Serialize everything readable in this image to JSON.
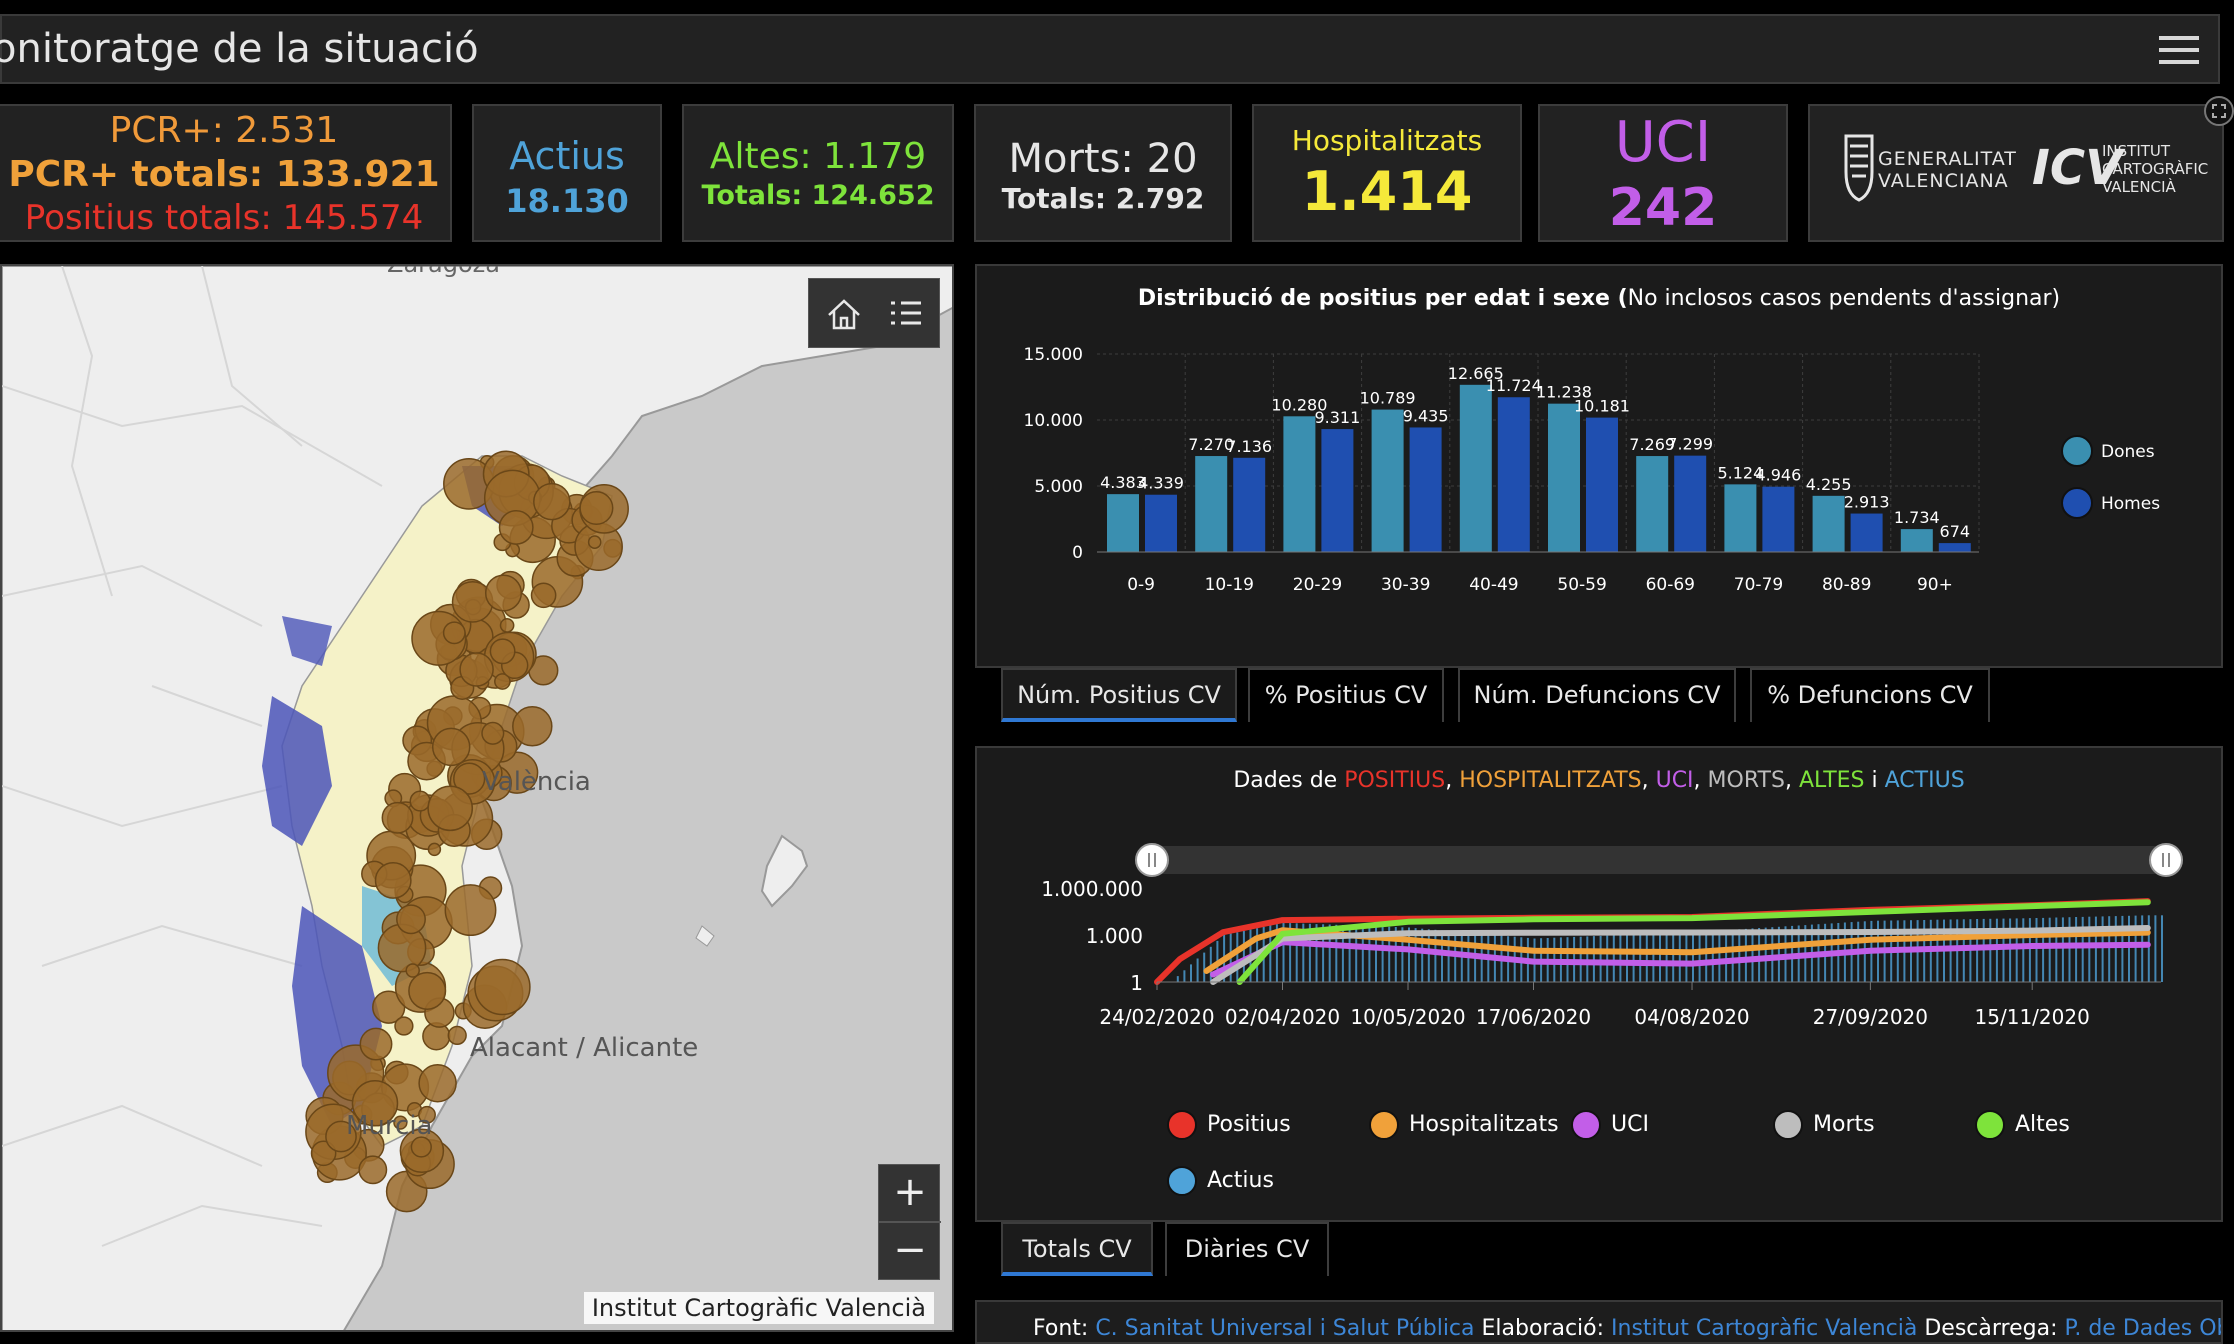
{
  "header": {
    "title": "onitoratge de la situació"
  },
  "cards": {
    "pcr": {
      "pcr_day": "PCR+: 2.531",
      "pcr_total": "PCR+ totals: 133.921",
      "positius_total": "Positius totals: 145.574"
    },
    "actius": {
      "label": "Actius",
      "value": "18.130"
    },
    "altes": {
      "label": "Altes: 1.179",
      "total": "Totals: 124.652"
    },
    "morts": {
      "label": "Morts: 20",
      "total": "Totals: 2.792"
    },
    "hospitalitzats": {
      "label": "Hospitalitzats",
      "value": "1.414"
    },
    "uci": {
      "label": "UCI",
      "value": "242"
    },
    "logos": {
      "gva": [
        "GENERALITAT",
        "VALENCIANA"
      ],
      "icv_mark": "ICV",
      "icv": [
        "INSTITUT",
        "CARTOGRÀFIC",
        "VALENCIÀ"
      ]
    }
  },
  "map": {
    "labels": {
      "zaragoza": "Zaragoza",
      "valencia": "València",
      "alacant": "Alacant / Alicante",
      "murcia": "Murcia"
    },
    "zoom_in": "+",
    "zoom_out": "−",
    "attribution": "Institut Cartogràfic Valencià"
  },
  "chart_age": {
    "title_bold": "Distribució de positius per edat i sexe (",
    "title_rest": "No inclosos casos pendents d'assignar)",
    "tabs": [
      "Núm. Positius CV",
      "% Positius CV",
      "Núm. Defuncions CV",
      "% Defuncions CV"
    ]
  },
  "chart_series": {
    "title_parts": [
      {
        "text": "Dades de ",
        "color": "#ffffff"
      },
      {
        "text": "POSITIUS",
        "color": "#e8332a"
      },
      {
        "text": ", ",
        "color": "#ffffff"
      },
      {
        "text": "HOSPITALITZATS",
        "color": "#f0a13a"
      },
      {
        "text": ", ",
        "color": "#ffffff"
      },
      {
        "text": "UCI",
        "color": "#c25ee8"
      },
      {
        "text": ", ",
        "color": "#ffffff"
      },
      {
        "text": "MORTS",
        "color": "#bdbdbd"
      },
      {
        "text": ", ",
        "color": "#ffffff"
      },
      {
        "text": "ALTES",
        "color": "#7ee33b"
      },
      {
        "text": " i ",
        "color": "#ffffff"
      },
      {
        "text": "ACTIUS",
        "color": "#4fa3d9"
      }
    ],
    "tabs": [
      "Totals CV",
      "Diàries CV"
    ]
  },
  "footer": {
    "font_label": "Font: ",
    "font_link": "C. Sanitat Universal i Salut Pública",
    "elab_label": " Elaboració: ",
    "elab_link": "Institut Cartogràfic Valencià",
    "desc_label": " Descàrrega: ",
    "desc_link": "P. de Dades Obertes"
  },
  "chart_data": [
    {
      "type": "bar",
      "categories": [
        "0-9",
        "10-19",
        "20-29",
        "30-39",
        "40-49",
        "50-59",
        "60-69",
        "70-79",
        "80-89",
        "90+"
      ],
      "series": [
        {
          "name": "Dones",
          "color": "#3a8fb0",
          "values": [
            4383,
            7270,
            10280,
            10789,
            12665,
            11238,
            7269,
            5124,
            4255,
            1734
          ],
          "labels": [
            "4.383",
            "7.270",
            "10.280",
            "10.789",
            "12.665",
            "11.238",
            "7.269",
            "5.124",
            "4.255",
            "1.734"
          ]
        },
        {
          "name": "Homes",
          "color": "#1f4fb0",
          "values": [
            4339,
            7136,
            9311,
            9435,
            11724,
            10181,
            7299,
            4946,
            2913,
            674
          ],
          "labels": [
            "4.339",
            "7.136",
            "9.311",
            "9.435",
            "11.724",
            "10.181",
            "7.299",
            "4.946",
            "2.913",
            "674"
          ]
        }
      ],
      "yticks": [
        0,
        5000,
        10000,
        15000
      ],
      "ytick_labels": [
        "0",
        "5.000",
        "10.000",
        "15.000"
      ],
      "ylim": [
        0,
        15000
      ],
      "grid": true,
      "legend": "right"
    },
    {
      "type": "line",
      "scale": "log",
      "yticks": [
        1,
        1000,
        1000000
      ],
      "ytick_labels": [
        "1",
        "1.000",
        "1.000.000"
      ],
      "ylim": [
        1,
        1000000
      ],
      "x_tick_labels": [
        "24/02/2020",
        "02/04/2020",
        "10/05/2020",
        "17/06/2020",
        "04/08/2020",
        "27/09/2020",
        "15/11/2020"
      ],
      "series": [
        {
          "name": "Positius",
          "color": "#e8332a",
          "points": [
            [
              "24/02/2020",
              1
            ],
            [
              "02/03/2020",
              30
            ],
            [
              "15/03/2020",
              1500
            ],
            [
              "02/04/2020",
              9000
            ],
            [
              "10/05/2020",
              11000
            ],
            [
              "17/06/2020",
              12500
            ],
            [
              "04/08/2020",
              14000
            ],
            [
              "27/09/2020",
              40000
            ],
            [
              "15/11/2020",
              80000
            ],
            [
              "20/12/2020",
              145574
            ]
          ]
        },
        {
          "name": "Hospitalitzats",
          "color": "#f0a13a",
          "points": [
            [
              "10/03/2020",
              5
            ],
            [
              "25/03/2020",
              600
            ],
            [
              "02/04/2020",
              2000
            ],
            [
              "10/05/2020",
              500
            ],
            [
              "17/06/2020",
              100
            ],
            [
              "04/08/2020",
              80
            ],
            [
              "27/09/2020",
              500
            ],
            [
              "15/11/2020",
              1000
            ],
            [
              "20/12/2020",
              1414
            ]
          ]
        },
        {
          "name": "UCI",
          "color": "#c25ee8",
          "points": [
            [
              "12/03/2020",
              3
            ],
            [
              "02/04/2020",
              350
            ],
            [
              "10/05/2020",
              120
            ],
            [
              "17/06/2020",
              20
            ],
            [
              "04/08/2020",
              15
            ],
            [
              "27/09/2020",
              100
            ],
            [
              "15/11/2020",
              200
            ],
            [
              "20/12/2020",
              242
            ]
          ]
        },
        {
          "name": "Morts",
          "color": "#bdbdbd",
          "points": [
            [
              "12/03/2020",
              1
            ],
            [
              "02/04/2020",
              600
            ],
            [
              "10/05/2020",
              1300
            ],
            [
              "17/06/2020",
              1400
            ],
            [
              "04/08/2020",
              1450
            ],
            [
              "27/09/2020",
              1550
            ],
            [
              "15/11/2020",
              1900
            ],
            [
              "20/12/2020",
              2792
            ]
          ]
        },
        {
          "name": "Altes",
          "color": "#7ee33b",
          "points": [
            [
              "20/03/2020",
              1
            ],
            [
              "02/04/2020",
              1200
            ],
            [
              "10/05/2020",
              7000
            ],
            [
              "17/06/2020",
              10000
            ],
            [
              "04/08/2020",
              12000
            ],
            [
              "27/09/2020",
              30000
            ],
            [
              "15/11/2020",
              70000
            ],
            [
              "20/12/2020",
              124652
            ]
          ]
        },
        {
          "name": "Actius",
          "color": "#4fa3d9",
          "points": [
            [
              "28/02/2020",
              1
            ],
            [
              "15/03/2020",
              1000
            ],
            [
              "02/04/2020",
              6000
            ],
            [
              "10/05/2020",
              3000
            ],
            [
              "17/06/2020",
              600
            ],
            [
              "04/08/2020",
              1500
            ],
            [
              "27/09/2020",
              8000
            ],
            [
              "15/11/2020",
              12000
            ],
            [
              "20/12/2020",
              18130
            ]
          ]
        }
      ],
      "legend": "bottom"
    }
  ]
}
